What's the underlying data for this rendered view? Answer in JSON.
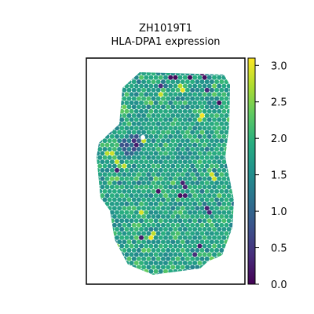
{
  "chart_data": {
    "type": "heatmap",
    "title": "ZH1019T1",
    "subtitle": "HLA-DPA1 expression",
    "colorbar": {
      "colormap": "viridis",
      "range": [
        0.0,
        3.1
      ],
      "ticks": [
        0.0,
        0.5,
        1.0,
        1.5,
        2.0,
        2.5,
        3.0
      ],
      "tick_labels": [
        "0.0",
        "0.5",
        "1.0",
        "1.5",
        "2.0",
        "2.5",
        "3.0"
      ]
    },
    "spots": {
      "description_of_values": "expression level per spatial spot, estimated",
      "typical_range": [
        1.3,
        2.3
      ],
      "count": 1000
    },
    "colors": {
      "frame": "#000000",
      "background": "#ffffff",
      "viridis_low": "#440154",
      "viridis_mid": "#21918c",
      "viridis_high": "#fde725"
    }
  }
}
